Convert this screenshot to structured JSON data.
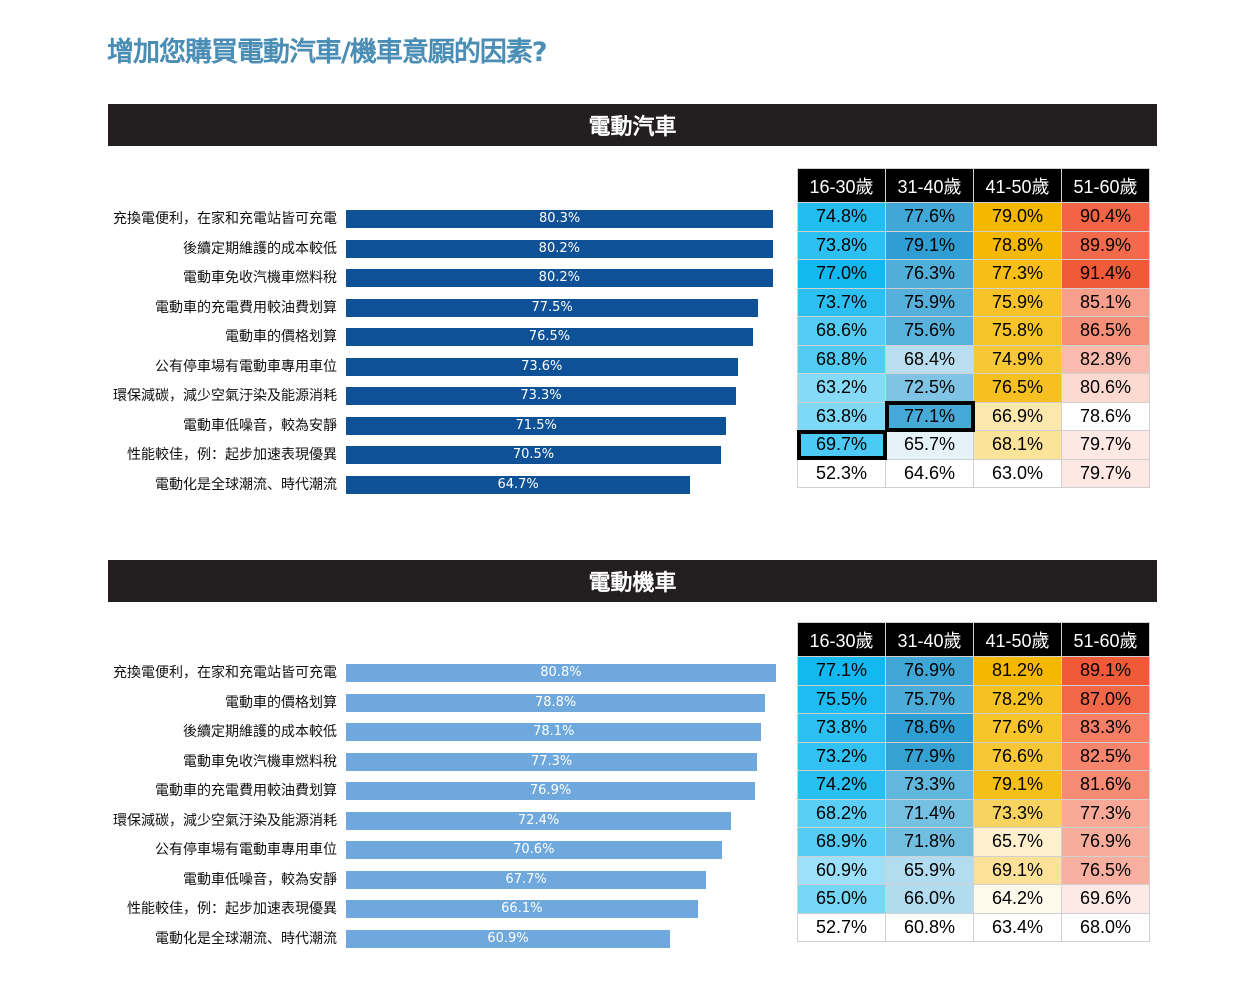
{
  "title": "增加您購買電動汽車/機車意願的因素?",
  "chart_data": [
    {
      "type": "bar",
      "title": "電動汽車",
      "color": "#0f5196",
      "xlim": [
        0,
        100
      ],
      "categories": [
        "充換電便利，在家和充電站皆可充電",
        "後續定期維護的成本較低",
        "電動車免收汽機車燃料稅",
        "電動車的充電費用較油費划算",
        "電動車的價格划算",
        "公有停車場有電動車專用車位",
        "環保減碳，減少空氣汙染及能源消耗",
        "電動車低噪音，較為安靜",
        "性能較佳，例：起步加速表現優異",
        "電動化是全球潮流、時代潮流"
      ],
      "values": [
        80.3,
        80.2,
        80.2,
        77.5,
        76.5,
        73.6,
        73.3,
        71.5,
        70.5,
        64.7
      ],
      "value_labels": [
        "80.3%",
        "80.2%",
        "80.2%",
        "77.5%",
        "76.5%",
        "73.6%",
        "73.3%",
        "71.5%",
        "70.5%",
        "64.7%"
      ],
      "table": {
        "type": "heatmap",
        "columns": [
          "16-30歲",
          "31-40歲",
          "41-50歲",
          "51-60歲"
        ],
        "column_colors": [
          "#12b8f0",
          "#2f9fd3",
          "#f5b800",
          "#f15a38"
        ],
        "rows": [
          [
            "74.8%",
            "77.6%",
            "79.0%",
            "90.4%"
          ],
          [
            "73.8%",
            "79.1%",
            "78.8%",
            "89.9%"
          ],
          [
            "77.0%",
            "76.3%",
            "77.3%",
            "91.4%"
          ],
          [
            "73.7%",
            "75.9%",
            "75.9%",
            "85.1%"
          ],
          [
            "68.6%",
            "75.6%",
            "75.8%",
            "86.5%"
          ],
          [
            "68.8%",
            "68.4%",
            "74.9%",
            "82.8%"
          ],
          [
            "63.2%",
            "72.5%",
            "76.5%",
            "80.6%"
          ],
          [
            "63.8%",
            "77.1%",
            "66.9%",
            "78.6%"
          ],
          [
            "69.7%",
            "65.7%",
            "68.1%",
            "79.7%"
          ],
          [
            "52.3%",
            "64.6%",
            "63.0%",
            "79.7%"
          ]
        ],
        "highlighted": [
          [
            7,
            1
          ],
          [
            8,
            0
          ]
        ]
      }
    },
    {
      "type": "bar",
      "title": "電動機車",
      "color": "#6fa8dc",
      "xlim": [
        0,
        100
      ],
      "categories": [
        "充換電便利，在家和充電站皆可充電",
        "電動車的價格划算",
        "後續定期維護的成本較低",
        "電動車免收汽機車燃料稅",
        "電動車的充電費用較油費划算",
        "環保減碳，減少空氣汙染及能源消耗",
        "公有停車場有電動車專用車位",
        "電動車低噪音，較為安靜",
        "性能較佳，例：起步加速表現優異",
        "電動化是全球潮流、時代潮流"
      ],
      "values": [
        80.8,
        78.8,
        78.1,
        77.3,
        76.9,
        72.4,
        70.6,
        67.7,
        66.1,
        60.9
      ],
      "value_labels": [
        "80.8%",
        "78.8%",
        "78.1%",
        "77.3%",
        "76.9%",
        "72.4%",
        "70.6%",
        "67.7%",
        "66.1%",
        "60.9%"
      ],
      "table": {
        "type": "heatmap",
        "columns": [
          "16-30歲",
          "31-40歲",
          "41-50歲",
          "51-60歲"
        ],
        "column_colors": [
          "#12b8f0",
          "#2f9fd3",
          "#f5b800",
          "#f15a38"
        ],
        "rows": [
          [
            "77.1%",
            "76.9%",
            "81.2%",
            "89.1%"
          ],
          [
            "75.5%",
            "75.7%",
            "78.2%",
            "87.0%"
          ],
          [
            "73.8%",
            "78.6%",
            "77.6%",
            "83.3%"
          ],
          [
            "73.2%",
            "77.9%",
            "76.6%",
            "82.5%"
          ],
          [
            "74.2%",
            "73.3%",
            "79.1%",
            "81.6%"
          ],
          [
            "68.2%",
            "71.4%",
            "73.3%",
            "77.3%"
          ],
          [
            "68.9%",
            "71.8%",
            "65.7%",
            "76.9%"
          ],
          [
            "60.9%",
            "65.9%",
            "69.1%",
            "76.5%"
          ],
          [
            "65.0%",
            "66.0%",
            "64.2%",
            "69.6%"
          ],
          [
            "52.7%",
            "60.8%",
            "63.4%",
            "68.0%"
          ]
        ],
        "highlighted": []
      }
    }
  ]
}
